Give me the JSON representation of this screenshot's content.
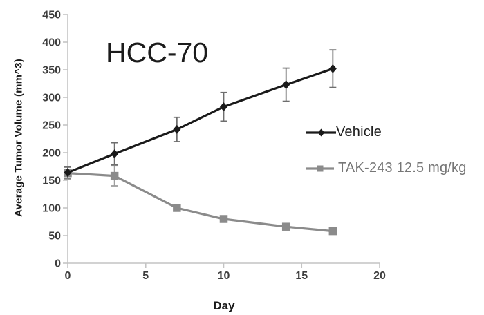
{
  "chart_data": {
    "type": "line",
    "title": "HCC-70",
    "xlabel": "Day",
    "ylabel": "Average Tumor Volume (mm^3)",
    "x": [
      0,
      3,
      7,
      10,
      14,
      17
    ],
    "xlim": [
      0,
      20
    ],
    "ylim": [
      0,
      450
    ],
    "xticks": [
      0,
      5,
      10,
      15,
      20
    ],
    "yticks": [
      0,
      50,
      100,
      150,
      200,
      250,
      300,
      350,
      400,
      450
    ],
    "grid": false,
    "legend_position": "right-middle",
    "axis_color": "#c4c4c4",
    "tick_label_color": "#3d3d3d",
    "series": [
      {
        "name": "Vehicle",
        "marker": "diamond",
        "color": "#1a1a1a",
        "error_color": "#6e6e6e",
        "legend_text_color": "#1f1f1f",
        "values": [
          164,
          198,
          242,
          283,
          323,
          352
        ],
        "errors": [
          10,
          20,
          22,
          26,
          30,
          34
        ]
      },
      {
        "name": "TAK-243 12.5 mg/kg",
        "marker": "square",
        "color": "#8b8b8b",
        "error_color": "#9e9e9e",
        "legend_text_color": "#767676",
        "values": [
          163,
          158,
          100,
          80,
          66,
          58
        ],
        "errors": [
          11,
          18,
          0,
          0,
          0,
          0
        ]
      }
    ]
  }
}
